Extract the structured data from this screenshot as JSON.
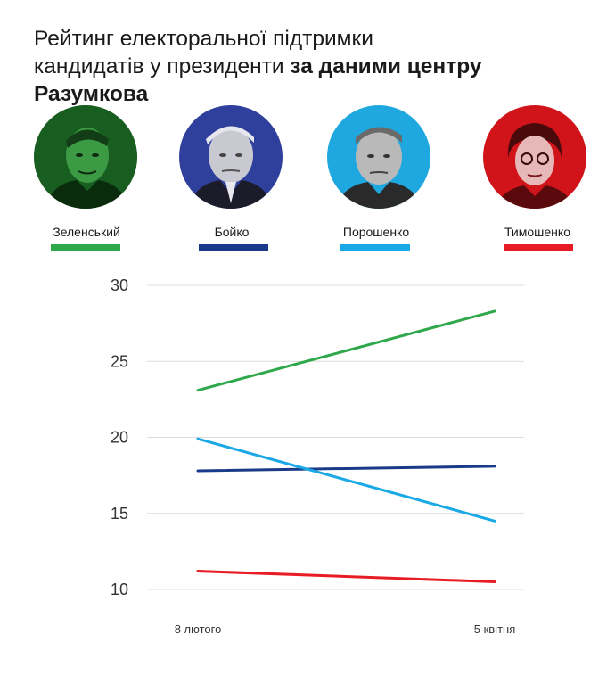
{
  "title": {
    "line1": "Рейтинг електоральної підтримки",
    "line2_regular": "кандидатів у президенти ",
    "line2_bold": "за даними центру Разумкова"
  },
  "candidates": [
    {
      "name": "Зеленський",
      "color": "#2ea84a",
      "tint": "#1f7a2a",
      "icon": "portrait-zelenskyi"
    },
    {
      "name": "Бойко",
      "color": "#1a3a8a",
      "tint": "#2f3f9c",
      "icon": "portrait-boiko"
    },
    {
      "name": "Порошенко",
      "color": "#1aa9e6",
      "tint": "#1ea8df",
      "icon": "portrait-poroshenko"
    },
    {
      "name": "Тимошенко",
      "color": "#e81c24",
      "tint": "#d1141a",
      "icon": "portrait-tymoshenko"
    }
  ],
  "chart_data": {
    "type": "line",
    "x": [
      "8 лютого",
      "5 квітня"
    ],
    "yticks": [
      "30",
      "25",
      "20",
      "15",
      "10"
    ],
    "ylim": [
      10,
      30
    ],
    "grid": true,
    "legend_position": "top",
    "series": [
      {
        "name": "Зеленський",
        "values": [
          23.1,
          28.3
        ],
        "color": "#2ea84a"
      },
      {
        "name": "Бойко",
        "values": [
          17.8,
          18.1
        ],
        "color": "#1a3a8a"
      },
      {
        "name": "Порошенко",
        "values": [
          19.9,
          14.5
        ],
        "color": "#1aa9e6"
      },
      {
        "name": "Тимошенко",
        "values": [
          11.2,
          10.5
        ],
        "color": "#e81c24"
      }
    ]
  }
}
